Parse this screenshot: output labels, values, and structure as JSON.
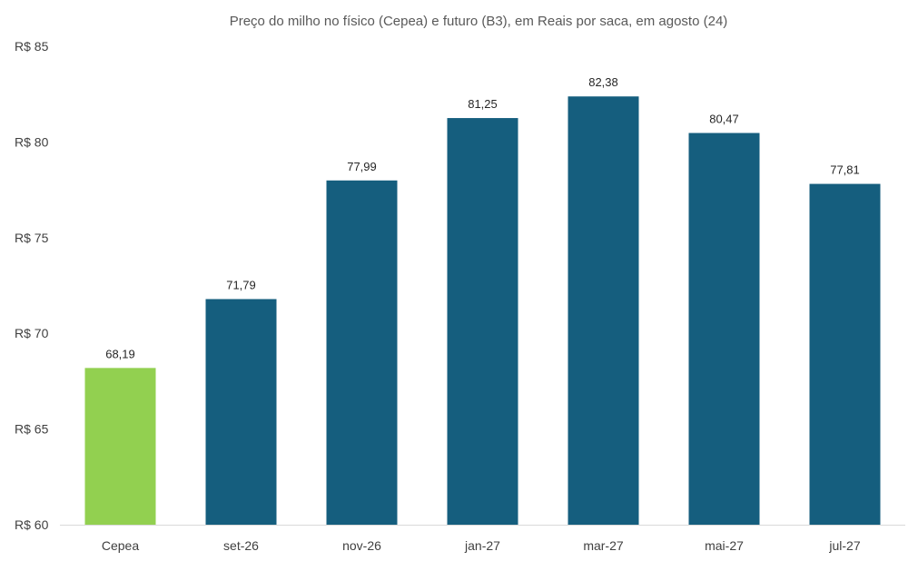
{
  "chart_data": {
    "type": "bar",
    "title": "Preço do milho no físico (Cepea) e futuro (B3), em Reais por saca, em agosto (24)",
    "xlabel": "",
    "ylabel": "",
    "categories": [
      "Cepea",
      "set-26",
      "nov-26",
      "jan-27",
      "mar-27",
      "mai-27",
      "jul-27"
    ],
    "values": [
      68.19,
      71.79,
      77.99,
      81.25,
      82.38,
      80.47,
      77.81
    ],
    "value_labels": [
      "68,19",
      "71,79",
      "77,99",
      "81,25",
      "82,38",
      "80,47",
      "77,81"
    ],
    "bar_colors": [
      "#92d050",
      "#155e7e",
      "#155e7e",
      "#155e7e",
      "#155e7e",
      "#155e7e",
      "#155e7e"
    ],
    "ylim": [
      60,
      85
    ],
    "y_ticks": [
      60,
      65,
      70,
      75,
      80,
      85
    ],
    "y_tick_labels": [
      "R$ 60",
      "R$ 65",
      "R$ 70",
      "R$ 75",
      "R$ 80",
      "R$ 85"
    ],
    "grid": false,
    "legend": "none"
  }
}
